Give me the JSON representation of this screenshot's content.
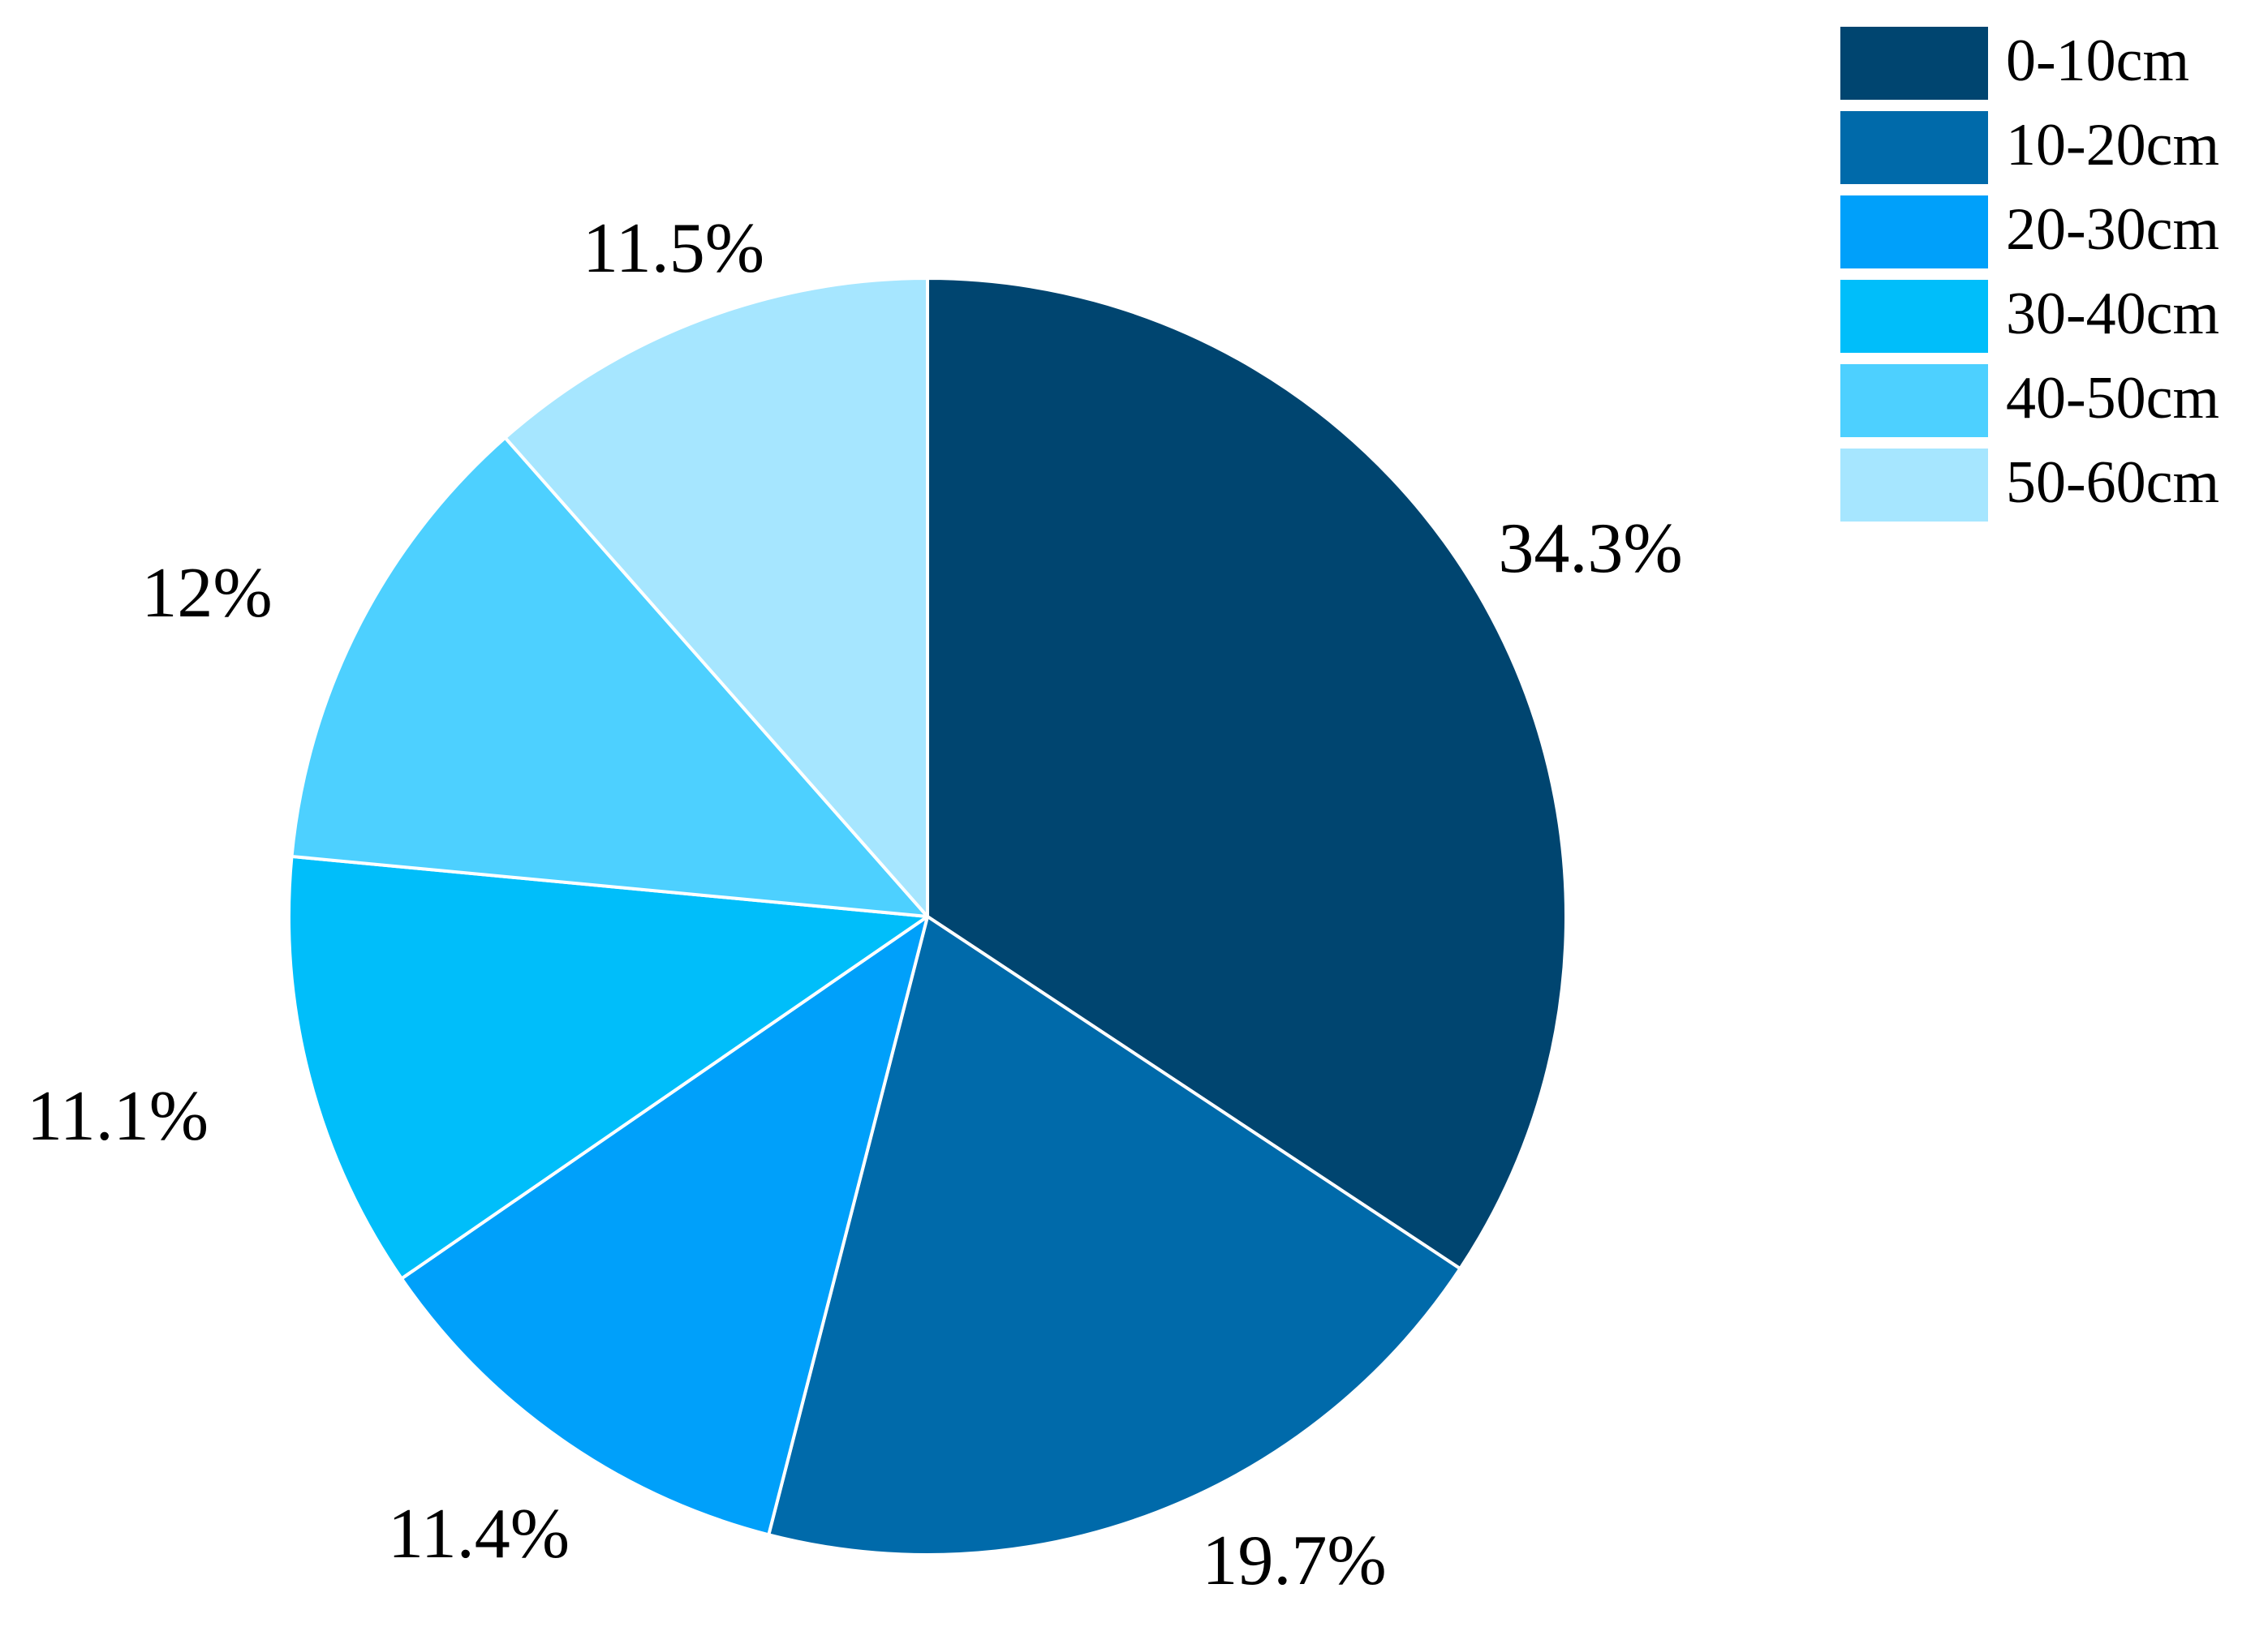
{
  "chart_data": {
    "type": "pie",
    "title": "",
    "start": "12 o'clock",
    "direction": "clockwise",
    "legend_position": "top-right",
    "slices": [
      {
        "category": "0-10cm",
        "value": 34.3,
        "label": "34.3%",
        "color": "#004570"
      },
      {
        "category": "10-20cm",
        "value": 19.7,
        "label": "19.7%",
        "color": "#006AAA"
      },
      {
        "category": "20-30cm",
        "value": 11.4,
        "label": "11.4%",
        "color": "#00A0FA"
      },
      {
        "category": "30-40cm",
        "value": 11.1,
        "label": "11.1%",
        "color": "#00BEFA"
      },
      {
        "category": "40-50cm",
        "value": 12,
        "label": "12%",
        "color": "#4DD0FF"
      },
      {
        "category": "50-60cm",
        "value": 11.5,
        "label": "11.5%",
        "color": "#A6E6FF"
      }
    ]
  }
}
